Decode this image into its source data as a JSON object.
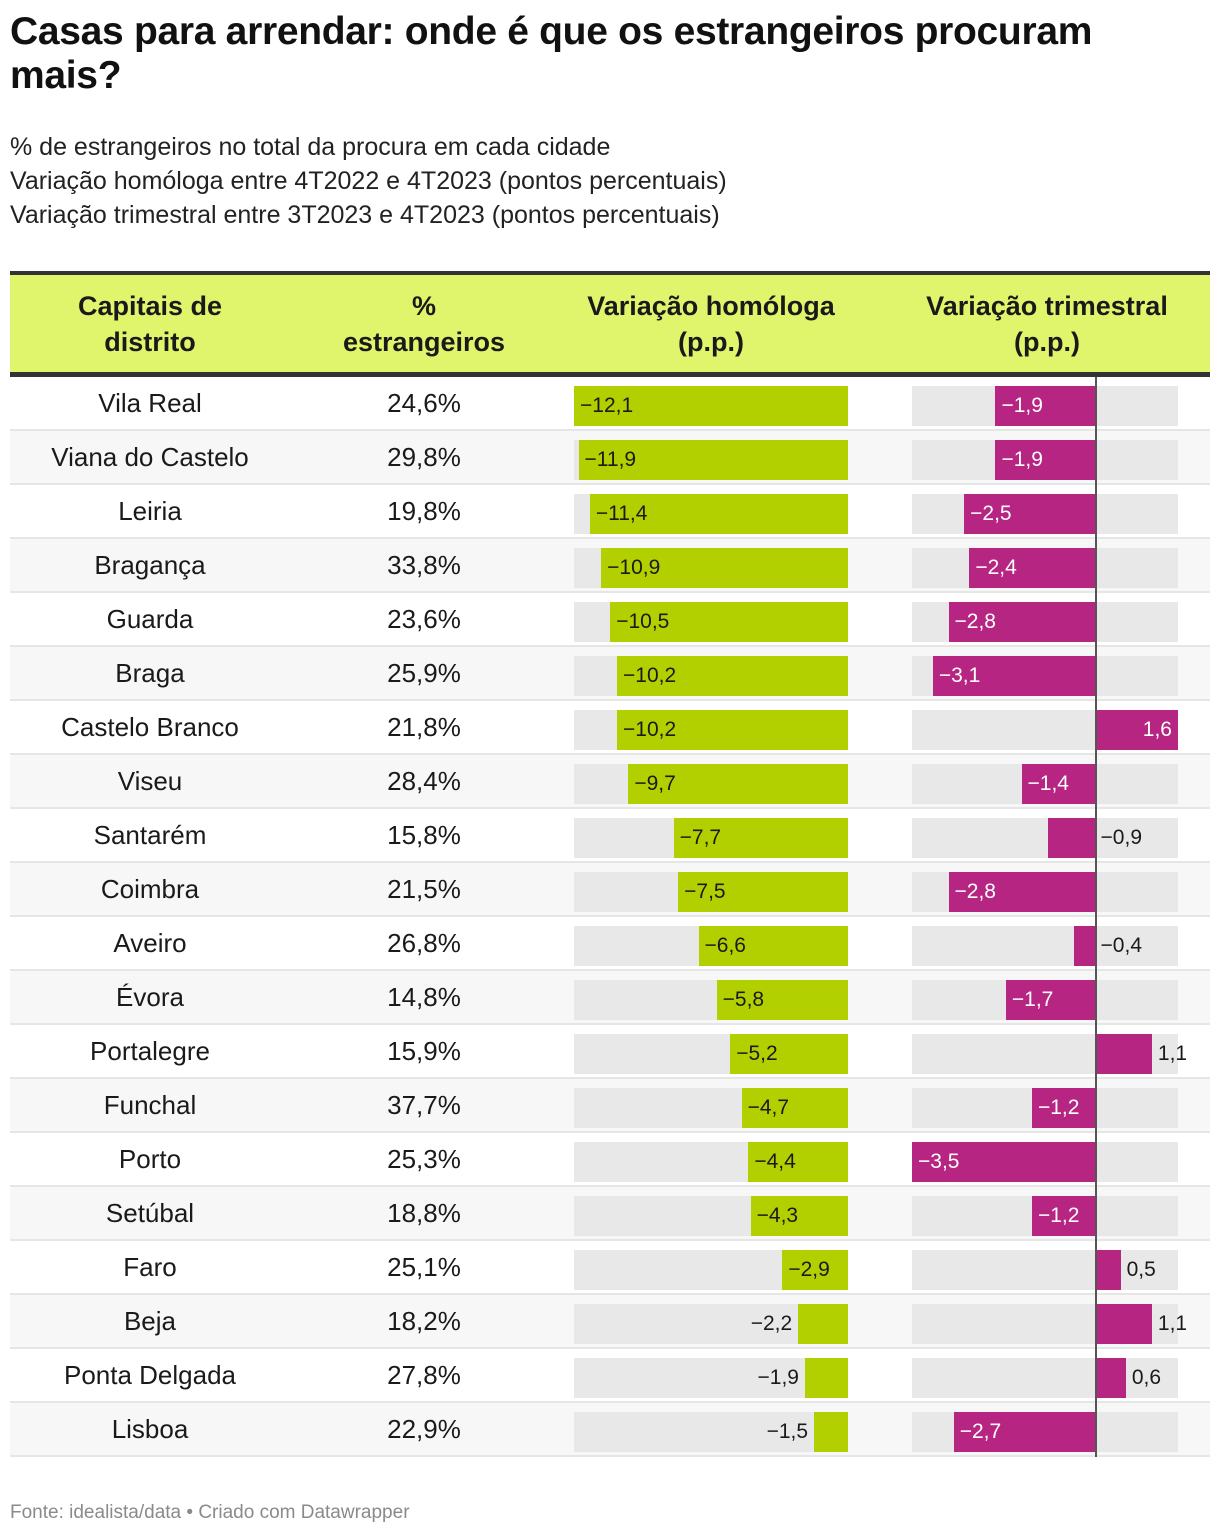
{
  "header": {
    "title": "Casas para arrendar: onde é que os estrangeiros procuram mais?",
    "subtitle_lines": [
      "% de estrangeiros no total da procura em cada cidade",
      "Variação homóloga entre 4T2022 e 4T2023 (pontos percentuais)",
      "Variação trimestral entre 3T2023 e 4T2023 (pontos percentuais)"
    ]
  },
  "table": {
    "columns": [
      {
        "line1": "Capitais de",
        "line2": "distrito"
      },
      {
        "line1": "%",
        "line2": "estrangeiros"
      },
      {
        "line1": "Variação homóloga",
        "line2": "(p.p.)"
      },
      {
        "line1": "Variação trimestral",
        "line2": "(p.p.)"
      }
    ]
  },
  "colors": {
    "header_bg": "#e1f56c",
    "homologa_bar": "#b2d000",
    "trimestral_bar": "#b72582",
    "bar_track": "#e8e8e8"
  },
  "chart_data": {
    "type": "table",
    "title": "Casas para arrendar: onde é que os estrangeiros procuram mais?",
    "columns": [
      "Capitais de distrito",
      "% estrangeiros",
      "Variação homóloga (p.p.)",
      "Variação trimestral (p.p.)"
    ],
    "homologa_range": [
      -12.1,
      0
    ],
    "trimestral_range": [
      -3.5,
      1.6
    ],
    "rows": [
      {
        "city": "Vila Real",
        "pct": "24,6%",
        "homologa": -12.1,
        "homologa_label": "−12,1",
        "trimestral": -1.9,
        "trimestral_label": "−1,9"
      },
      {
        "city": "Viana do Castelo",
        "pct": "29,8%",
        "homologa": -11.9,
        "homologa_label": "−11,9",
        "trimestral": -1.9,
        "trimestral_label": "−1,9"
      },
      {
        "city": "Leiria",
        "pct": "19,8%",
        "homologa": -11.4,
        "homologa_label": "−11,4",
        "trimestral": -2.5,
        "trimestral_label": "−2,5"
      },
      {
        "city": "Bragança",
        "pct": "33,8%",
        "homologa": -10.9,
        "homologa_label": "−10,9",
        "trimestral": -2.4,
        "trimestral_label": "−2,4"
      },
      {
        "city": "Guarda",
        "pct": "23,6%",
        "homologa": -10.5,
        "homologa_label": "−10,5",
        "trimestral": -2.8,
        "trimestral_label": "−2,8"
      },
      {
        "city": "Braga",
        "pct": "25,9%",
        "homologa": -10.2,
        "homologa_label": "−10,2",
        "trimestral": -3.1,
        "trimestral_label": "−3,1"
      },
      {
        "city": "Castelo Branco",
        "pct": "21,8%",
        "homologa": -10.2,
        "homologa_label": "−10,2",
        "trimestral": 1.6,
        "trimestral_label": "1,6"
      },
      {
        "city": "Viseu",
        "pct": "28,4%",
        "homologa": -9.7,
        "homologa_label": "−9,7",
        "trimestral": -1.4,
        "trimestral_label": "−1,4"
      },
      {
        "city": "Santarém",
        "pct": "15,8%",
        "homologa": -7.7,
        "homologa_label": "−7,7",
        "trimestral": -0.9,
        "trimestral_label": "−0,9"
      },
      {
        "city": "Coimbra",
        "pct": "21,5%",
        "homologa": -7.5,
        "homologa_label": "−7,5",
        "trimestral": -2.8,
        "trimestral_label": "−2,8"
      },
      {
        "city": "Aveiro",
        "pct": "26,8%",
        "homologa": -6.6,
        "homologa_label": "−6,6",
        "trimestral": -0.4,
        "trimestral_label": "−0,4"
      },
      {
        "city": "Évora",
        "pct": "14,8%",
        "homologa": -5.8,
        "homologa_label": "−5,8",
        "trimestral": -1.7,
        "trimestral_label": "−1,7"
      },
      {
        "city": "Portalegre",
        "pct": "15,9%",
        "homologa": -5.2,
        "homologa_label": "−5,2",
        "trimestral": 1.1,
        "trimestral_label": "1,1"
      },
      {
        "city": "Funchal",
        "pct": "37,7%",
        "homologa": -4.7,
        "homologa_label": "−4,7",
        "trimestral": -1.2,
        "trimestral_label": "−1,2"
      },
      {
        "city": "Porto",
        "pct": "25,3%",
        "homologa": -4.4,
        "homologa_label": "−4,4",
        "trimestral": -3.5,
        "trimestral_label": "−3,5"
      },
      {
        "city": "Setúbal",
        "pct": "18,8%",
        "homologa": -4.3,
        "homologa_label": "−4,3",
        "trimestral": -1.2,
        "trimestral_label": "−1,2"
      },
      {
        "city": "Faro",
        "pct": "25,1%",
        "homologa": -2.9,
        "homologa_label": "−2,9",
        "trimestral": 0.5,
        "trimestral_label": "0,5"
      },
      {
        "city": "Beja",
        "pct": "18,2%",
        "homologa": -2.2,
        "homologa_label": "−2,2",
        "trimestral": 1.1,
        "trimestral_label": "1,1"
      },
      {
        "city": "Ponta Delgada",
        "pct": "27,8%",
        "homologa": -1.9,
        "homologa_label": "−1,9",
        "trimestral": 0.6,
        "trimestral_label": "0,6"
      },
      {
        "city": "Lisboa",
        "pct": "22,9%",
        "homologa": -1.5,
        "homologa_label": "−1,5",
        "trimestral": -2.7,
        "trimestral_label": "−2,7"
      }
    ]
  },
  "footer": {
    "source": "Fonte: idealista/data • Criado com Datawrapper"
  }
}
